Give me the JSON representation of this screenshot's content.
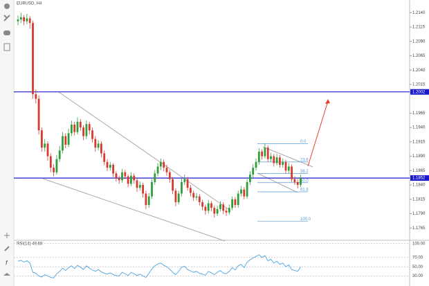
{
  "chart_data": [
    {
      "type": "candlestick",
      "title": "EURUSD, H4",
      "ohlc": [
        [
          1.2125,
          1.2135,
          1.2118,
          1.2128
        ],
        [
          1.2128,
          1.214,
          1.2122,
          1.2132
        ],
        [
          1.2132,
          1.2136,
          1.2118,
          1.2125
        ],
        [
          1.2125,
          1.2138,
          1.212,
          1.213
        ],
        [
          1.213,
          1.2134,
          1.2112,
          1.2122
        ],
        [
          1.2122,
          1.2126,
          1.199,
          1.1998
        ],
        [
          1.1998,
          1.2006,
          1.1982,
          1.199
        ],
        [
          1.199,
          1.1996,
          1.1928,
          1.1935
        ],
        [
          1.1935,
          1.194,
          1.1898,
          1.1905
        ],
        [
          1.1905,
          1.192,
          1.1898,
          1.1912
        ],
        [
          1.1912,
          1.1916,
          1.1882,
          1.189
        ],
        [
          1.189,
          1.1895,
          1.1862,
          1.187
        ],
        [
          1.187,
          1.1876,
          1.1855,
          1.1862
        ],
        [
          1.1862,
          1.1892,
          1.1858,
          1.1885
        ],
        [
          1.1885,
          1.1908,
          1.188,
          1.19
        ],
        [
          1.19,
          1.1932,
          1.1895,
          1.1925
        ],
        [
          1.1925,
          1.193,
          1.1904,
          1.191
        ],
        [
          1.191,
          1.1938,
          1.1906,
          1.193
        ],
        [
          1.193,
          1.1952,
          1.1925,
          1.1945
        ],
        [
          1.1945,
          1.195,
          1.1926,
          1.1932
        ],
        [
          1.1932,
          1.1958,
          1.1928,
          1.195
        ],
        [
          1.195,
          1.1955,
          1.1934,
          1.194
        ],
        [
          1.194,
          1.1944,
          1.1918,
          1.1925
        ],
        [
          1.1925,
          1.1952,
          1.192,
          1.1946
        ],
        [
          1.1946,
          1.195,
          1.1928,
          1.1935
        ],
        [
          1.1935,
          1.194,
          1.1914,
          1.192
        ],
        [
          1.192,
          1.1925,
          1.1898,
          1.1905
        ],
        [
          1.1905,
          1.1918,
          1.19,
          1.1912
        ],
        [
          1.1912,
          1.1916,
          1.1888,
          1.1895
        ],
        [
          1.1895,
          1.19,
          1.1874,
          1.188
        ],
        [
          1.188,
          1.1885,
          1.1864,
          1.187
        ],
        [
          1.187,
          1.188,
          1.1865,
          1.1875
        ],
        [
          1.1875,
          1.1878,
          1.1854,
          1.186
        ],
        [
          1.186,
          1.1864,
          1.1846,
          1.1852
        ],
        [
          1.1852,
          1.1856,
          1.1842,
          1.1848
        ],
        [
          1.1848,
          1.1868,
          1.1844,
          1.1862
        ],
        [
          1.1862,
          1.1866,
          1.185,
          1.1855
        ],
        [
          1.1855,
          1.1858,
          1.1836,
          1.1842
        ],
        [
          1.1842,
          1.1862,
          1.1838,
          1.1856
        ],
        [
          1.1856,
          1.186,
          1.1842,
          1.1848
        ],
        [
          1.1848,
          1.1852,
          1.1828,
          1.1835
        ],
        [
          1.1835,
          1.1846,
          1.183,
          1.184
        ],
        [
          1.184,
          1.1844,
          1.1818,
          1.1825
        ],
        [
          1.1825,
          1.183,
          1.1798,
          1.1805
        ],
        [
          1.1805,
          1.1826,
          1.18,
          1.182
        ],
        [
          1.182,
          1.185,
          1.1816,
          1.1845
        ],
        [
          1.1845,
          1.1866,
          1.184,
          1.186
        ],
        [
          1.186,
          1.1878,
          1.1855,
          1.1872
        ],
        [
          1.1872,
          1.1886,
          1.1866,
          1.188
        ],
        [
          1.188,
          1.1884,
          1.1864,
          1.187
        ],
        [
          1.187,
          1.1875,
          1.1856,
          1.1862
        ],
        [
          1.1862,
          1.1866,
          1.1844,
          1.185
        ],
        [
          1.185,
          1.1854,
          1.1824,
          1.183
        ],
        [
          1.183,
          1.1834,
          1.1803,
          1.181
        ],
        [
          1.181,
          1.183,
          1.1806,
          1.1825
        ],
        [
          1.1825,
          1.1852,
          1.182,
          1.1845
        ],
        [
          1.1845,
          1.1858,
          1.184,
          1.185
        ],
        [
          1.185,
          1.1854,
          1.183,
          1.1835
        ],
        [
          1.1835,
          1.184,
          1.182,
          1.1826
        ],
        [
          1.1826,
          1.183,
          1.1812,
          1.1818
        ],
        [
          1.1818,
          1.1826,
          1.1813,
          1.182
        ],
        [
          1.182,
          1.1824,
          1.1804,
          1.181
        ],
        [
          1.181,
          1.1814,
          1.1796,
          1.1802
        ],
        [
          1.1802,
          1.1806,
          1.1788,
          1.1795
        ],
        [
          1.1795,
          1.1814,
          1.179,
          1.1808
        ],
        [
          1.1808,
          1.1812,
          1.1794,
          1.18
        ],
        [
          1.18,
          1.1804,
          1.1783,
          1.179
        ],
        [
          1.179,
          1.1804,
          1.1786,
          1.1798
        ],
        [
          1.1798,
          1.1812,
          1.1794,
          1.1806
        ],
        [
          1.1806,
          1.181,
          1.1789,
          1.1795
        ],
        [
          1.1795,
          1.18,
          1.1786,
          1.1792
        ],
        [
          1.1792,
          1.1806,
          1.1788,
          1.18
        ],
        [
          1.18,
          1.182,
          1.1796,
          1.1815
        ],
        [
          1.1815,
          1.1819,
          1.18,
          1.1805
        ],
        [
          1.1805,
          1.183,
          1.18,
          1.1825
        ],
        [
          1.1825,
          1.1838,
          1.182,
          1.1832
        ],
        [
          1.1832,
          1.1836,
          1.1815,
          1.182
        ],
        [
          1.182,
          1.185,
          1.1816,
          1.1845
        ],
        [
          1.1845,
          1.1864,
          1.184,
          1.1858
        ],
        [
          1.1858,
          1.1876,
          1.1852,
          1.187
        ],
        [
          1.187,
          1.1886,
          1.1865,
          1.188
        ],
        [
          1.188,
          1.1904,
          1.1875,
          1.1898
        ],
        [
          1.1898,
          1.1902,
          1.1884,
          1.189
        ],
        [
          1.189,
          1.1912,
          1.1886,
          1.1905
        ],
        [
          1.1905,
          1.1909,
          1.188,
          1.1885
        ],
        [
          1.1885,
          1.1896,
          1.188,
          1.189
        ],
        [
          1.189,
          1.1894,
          1.1872,
          1.1878
        ],
        [
          1.1878,
          1.1894,
          1.1874,
          1.1888
        ],
        [
          1.1888,
          1.1892,
          1.187,
          1.1875
        ],
        [
          1.1875,
          1.1886,
          1.187,
          1.188
        ],
        [
          1.188,
          1.1884,
          1.186,
          1.1865
        ],
        [
          1.1865,
          1.1878,
          1.186,
          1.1872
        ],
        [
          1.1872,
          1.1876,
          1.1845,
          1.185
        ],
        [
          1.185,
          1.1855,
          1.184,
          1.1845
        ],
        [
          1.1845,
          1.185,
          1.1834,
          1.184
        ],
        [
          1.184,
          1.1858,
          1.1836,
          1.1852
        ]
      ],
      "up_color": "#2e9e3a",
      "down_color": "#d63a2f",
      "ylim": [
        1.1746,
        1.2156
      ],
      "yticks": [
        {
          "value": 1.214,
          "label": "1.2140"
        },
        {
          "value": 1.2115,
          "label": "1.2115"
        },
        {
          "value": 1.209,
          "label": "1.2090"
        },
        {
          "value": 1.2065,
          "label": "1.2065"
        },
        {
          "value": 1.204,
          "label": "1.2040"
        },
        {
          "value": 1.2015,
          "label": "1.2015"
        },
        {
          "value": 1.1965,
          "label": "1.1965"
        },
        {
          "value": 1.194,
          "label": "1.1940"
        },
        {
          "value": 1.1915,
          "label": "1.1915"
        },
        {
          "value": 1.189,
          "label": "1.1890"
        },
        {
          "value": 1.1865,
          "label": "1.1865"
        },
        {
          "value": 1.184,
          "label": "1.1840"
        },
        {
          "value": 1.1815,
          "label": "1.1815"
        },
        {
          "value": 1.179,
          "label": "1.1790"
        },
        {
          "value": 1.1765,
          "label": "1.1765"
        }
      ],
      "levels": [
        {
          "value": 1.2002,
          "label": "1.2002"
        },
        {
          "value": 1.1852,
          "label": "1.1852"
        }
      ],
      "level_color": "#1a1acc",
      "fib": [
        {
          "value": 1.1912,
          "label": "0.0"
        },
        {
          "value": 1.188,
          "label": "23.6"
        },
        {
          "value": 1.186,
          "label": "38.2"
        },
        {
          "value": 1.1844,
          "label": "50.0"
        },
        {
          "value": 1.1828,
          "label": "61.8"
        },
        {
          "value": 1.1777,
          "label": "100.0"
        }
      ],
      "fib_color": "#5b9bd5"
    },
    {
      "type": "line",
      "title": "RSI(14) 49.68",
      "color": "#4aa3df",
      "values": [
        62,
        64,
        60,
        63,
        58,
        38,
        36,
        30,
        28,
        33,
        30,
        27,
        26,
        35,
        40,
        47,
        42,
        48,
        52,
        46,
        53,
        49,
        44,
        52,
        47,
        43,
        40,
        44,
        39,
        36,
        34,
        37,
        33,
        31,
        30,
        38,
        35,
        31,
        38,
        35,
        31,
        34,
        30,
        27,
        36,
        45,
        52,
        56,
        58,
        53,
        50,
        45,
        38,
        33,
        40,
        49,
        51,
        44,
        41,
        38,
        40,
        36,
        34,
        32,
        40,
        37,
        33,
        38,
        42,
        36,
        35,
        40,
        48,
        43,
        52,
        55,
        48,
        60,
        65,
        69,
        72,
        76,
        70,
        74,
        63,
        66,
        58,
        62,
        55,
        58,
        50,
        54,
        44,
        42,
        40,
        49.68
      ],
      "ylim": [
        13,
        104
      ],
      "yticks": [
        {
          "value": 100,
          "label": "100.00"
        },
        {
          "value": 70,
          "label": "70.00"
        },
        {
          "value": 50,
          "label": "50.00"
        },
        {
          "value": 30,
          "label": "30.00"
        }
      ]
    }
  ]
}
